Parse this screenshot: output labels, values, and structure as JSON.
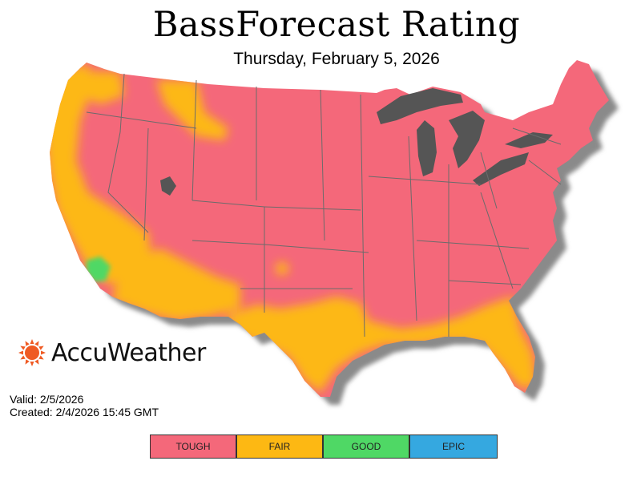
{
  "title": "BassForecast Rating",
  "subtitle": "Thursday, February 5, 2026",
  "brand": {
    "name": "AccuWeather",
    "icon": "sun-icon",
    "color": "#ef5a23"
  },
  "valid_text": "Valid: 2/5/2026",
  "created_text": "Created: 2/4/2026 15:45 GMT",
  "legend": [
    {
      "label": "TOUGH",
      "color": "#f4687a"
    },
    {
      "label": "FAIR",
      "color": "#fdb813"
    },
    {
      "label": "GOOD",
      "color": "#4fd865"
    },
    {
      "label": "EPIC",
      "color": "#35a8e0"
    }
  ],
  "map": {
    "region": "contiguous-united-states",
    "dominant_rating": "TOUGH",
    "fair_areas": [
      "pacific-coast",
      "southern-california",
      "desert-southwest",
      "texas",
      "gulf-coast",
      "florida",
      "northern-rockies"
    ],
    "good_areas": [
      "southern-california-inland"
    ],
    "lake_color": "#555555",
    "shadow_color": "#8a8a8a"
  }
}
